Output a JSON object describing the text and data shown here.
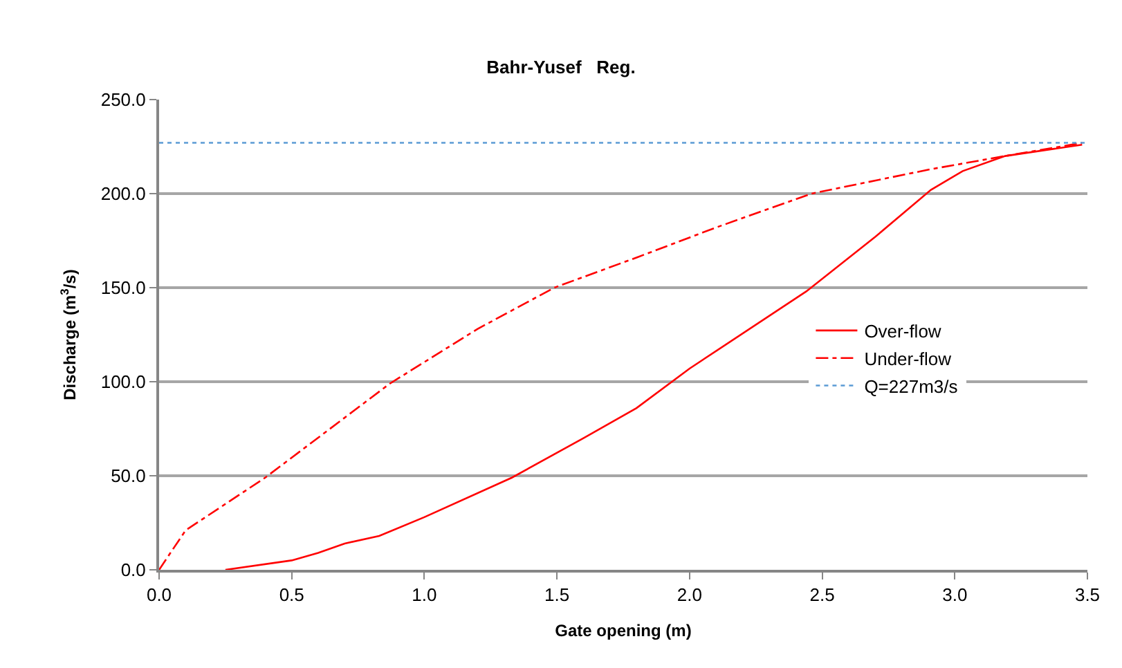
{
  "chart_data": {
    "type": "line",
    "title": "Bahr-Yusef   Reg.",
    "xlabel": "Gate opening (m)",
    "ylabel": "Discharge (m$^{3}$/s)",
    "xlim": [
      0,
      3.5
    ],
    "xticks": [
      {
        "value": 0,
        "label": "0.0"
      },
      {
        "value": 0.5,
        "label": "0.5"
      },
      {
        "value": 1,
        "label": "1.0"
      },
      {
        "value": 1.5,
        "label": "1.5"
      },
      {
        "value": 2,
        "label": "2.0"
      },
      {
        "value": 2.5,
        "label": "2.5"
      },
      {
        "value": 3,
        "label": "3.0"
      },
      {
        "value": 3.5,
        "label": "3.5"
      }
    ],
    "ylim": [
      0,
      250
    ],
    "yticks": [
      {
        "value": 0,
        "label": "0.0"
      },
      {
        "value": 50,
        "label": "50.0"
      },
      {
        "value": 100,
        "label": "100.0"
      },
      {
        "value": 150,
        "label": "150.0"
      },
      {
        "value": 200,
        "label": "200.0"
      },
      {
        "value": 250,
        "label": "250.0"
      }
    ],
    "grid": "y",
    "legend": "right",
    "marker": "none",
    "series": [
      {
        "name": "Over-flow",
        "color": "#ff0000",
        "line_style": "solid",
        "x": [
          0.25,
          0.5,
          0.6,
          0.7,
          0.83,
          1.0,
          1.33,
          1.6,
          1.8,
          2.0,
          2.44,
          2.7,
          2.91,
          3.03,
          3.19,
          3.48
        ],
        "values": [
          0,
          5,
          9,
          14,
          18,
          28,
          49,
          70,
          86,
          107,
          148,
          177,
          202,
          212,
          220,
          226
        ]
      },
      {
        "name": "Under-flow",
        "color": "#ff0000",
        "line_style": "dashdot",
        "x": [
          0,
          0.1,
          0.4,
          0.87,
          1.2,
          1.49,
          1.8,
          2.1,
          2.46,
          2.91,
          3.19,
          3.48
        ],
        "values": [
          0,
          21,
          49,
          99,
          128,
          150,
          166,
          182,
          200,
          213,
          220,
          227
        ]
      },
      {
        "name": "Q=227m3/s",
        "color": "#5b9bd5",
        "line_style": "dotted",
        "x": [
          0,
          3.5
        ],
        "values": [
          227,
          227
        ]
      }
    ]
  }
}
